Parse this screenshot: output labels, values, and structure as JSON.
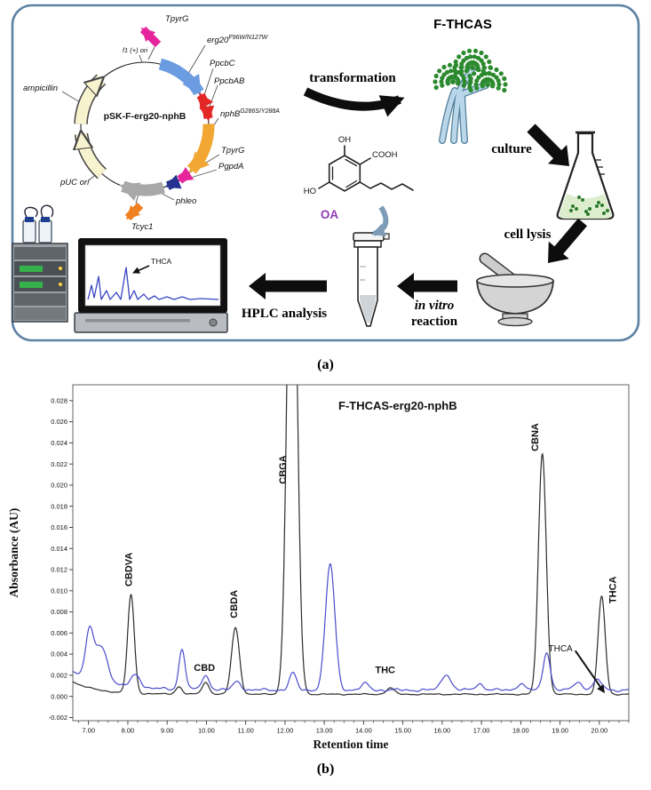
{
  "panel_a": {
    "label": "(a)",
    "plasmid": {
      "name": "pSK-F-erg20-nphB",
      "genes": {
        "tpyrg_top": "TpyrG",
        "f1_ori": "f1 (+) ori",
        "erg20_base": "erg20",
        "erg20_sup": "F96W/N127W",
        "ppcbc": "PpcbC",
        "ppcbab": "PpcbAB",
        "nphb_base": "nphB",
        "nphb_sup": "G286S/Y288A",
        "tpyrg_2": "TpyrG",
        "pgpda": "PgpdA",
        "phleo": "phleo",
        "tcyc1": "Tcyc1",
        "puc_ori": "pUC ori",
        "ampicillin": "ampicillin"
      }
    },
    "steps": {
      "transformation": "transformation",
      "strain": "F-THCAS",
      "culture": "culture",
      "cell_lysis": "cell lysis",
      "in_vitro": "in vitro",
      "reaction": "reaction",
      "hplc": "HPLC analysis"
    },
    "substrate": {
      "name": "OA",
      "oh": "OH",
      "cooh": "COOH",
      "ho": "HO"
    },
    "screen": {
      "peak": "THCA"
    }
  },
  "panel_b": {
    "label": "(b)"
  },
  "chart_data": {
    "type": "line",
    "title": "F-THCAS-erg20-nphB",
    "xlabel": "Retention time",
    "ylabel": "Absorbance (AU)",
    "x_range": [
      6.6,
      20.75
    ],
    "y_range": [
      -0.0023,
      0.0295
    ],
    "x_tick_min": 7,
    "x_tick_max": 20,
    "x_tick_step": 1.0,
    "y_tick_step": 0.002,
    "grid": false,
    "legend": "none",
    "series": [
      {
        "name": "black-trace",
        "color": "#2b2b2b",
        "baseline": 0.0002,
        "start_decay": {
          "amp": 0.0012,
          "rate": 1.6
        },
        "noise": 7e-05,
        "peaks": [
          {
            "label": "CBDVA",
            "rt": 8.08,
            "height": 0.0093,
            "sigma": 0.085
          },
          {
            "label": "",
            "rt": 9.3,
            "height": 0.0007,
            "sigma": 0.08
          },
          {
            "label": "CBD",
            "rt": 9.98,
            "height": 0.0011,
            "sigma": 0.09
          },
          {
            "label": "CBDA",
            "rt": 10.74,
            "height": 0.0063,
            "sigma": 0.1
          },
          {
            "label": "CBGA",
            "rt": 12.18,
            "height": 0.055,
            "sigma": 0.12
          },
          {
            "label": "THC",
            "rt": 14.68,
            "height": 0.0006,
            "sigma": 0.1
          },
          {
            "label": "CBNA",
            "rt": 18.55,
            "height": 0.0228,
            "sigma": 0.1
          },
          {
            "label": "THCA",
            "rt": 20.06,
            "height": 0.0093,
            "sigma": 0.09
          }
        ]
      },
      {
        "name": "blue-trace",
        "color": "#4a4ccc",
        "baseline": 0.0006,
        "start_decay": {
          "amp": 0.0018,
          "rate": 1.2
        },
        "noise": 0.00016,
        "peaks": [
          {
            "rt": 7.02,
            "height": 0.0042,
            "sigma": 0.1
          },
          {
            "rt": 7.32,
            "height": 0.0034,
            "sigma": 0.16
          },
          {
            "rt": 8.2,
            "height": 0.0012,
            "sigma": 0.12
          },
          {
            "rt": 9.38,
            "height": 0.0038,
            "sigma": 0.08
          },
          {
            "rt": 9.98,
            "height": 0.0013,
            "sigma": 0.1
          },
          {
            "rt": 10.78,
            "height": 0.0008,
            "sigma": 0.1
          },
          {
            "rt": 12.2,
            "height": 0.0016,
            "sigma": 0.09
          },
          {
            "rt": 13.15,
            "height": 0.0119,
            "sigma": 0.12
          },
          {
            "rt": 14.05,
            "height": 0.0006,
            "sigma": 0.1
          },
          {
            "rt": 16.1,
            "height": 0.0015,
            "sigma": 0.12
          },
          {
            "rt": 16.95,
            "height": 0.0006,
            "sigma": 0.1
          },
          {
            "rt": 18.0,
            "height": 0.0006,
            "sigma": 0.1
          },
          {
            "rt": 18.66,
            "height": 0.0036,
            "sigma": 0.09
          },
          {
            "rt": 19.45,
            "height": 0.0008,
            "sigma": 0.1
          },
          {
            "rt": 19.95,
            "height": 0.0009,
            "sigma": 0.12
          }
        ]
      }
    ],
    "peak_annotations": [
      {
        "text": "CBDVA",
        "x": 8.1,
        "y": 0.0104,
        "rotated": true
      },
      {
        "text": "CBD",
        "x": 9.95,
        "y": 0.0024,
        "rotated": false
      },
      {
        "text": "CBDA",
        "x": 10.78,
        "y": 0.0074,
        "rotated": true
      },
      {
        "text": "CBGA",
        "x": 12.02,
        "y": 0.0201,
        "rotated": true
      },
      {
        "text": "THC",
        "x": 14.55,
        "y": 0.0022,
        "rotated": false
      },
      {
        "text": "CBNA",
        "x": 18.45,
        "y": 0.0232,
        "rotated": true
      },
      {
        "text": "THCA",
        "x": 20.42,
        "y": 0.0088,
        "rotated": true
      }
    ],
    "arrow_annotation": {
      "text": "THCA",
      "x": 19.32,
      "y": 0.0045,
      "x2": 20.12,
      "y2": 0.0004
    }
  }
}
